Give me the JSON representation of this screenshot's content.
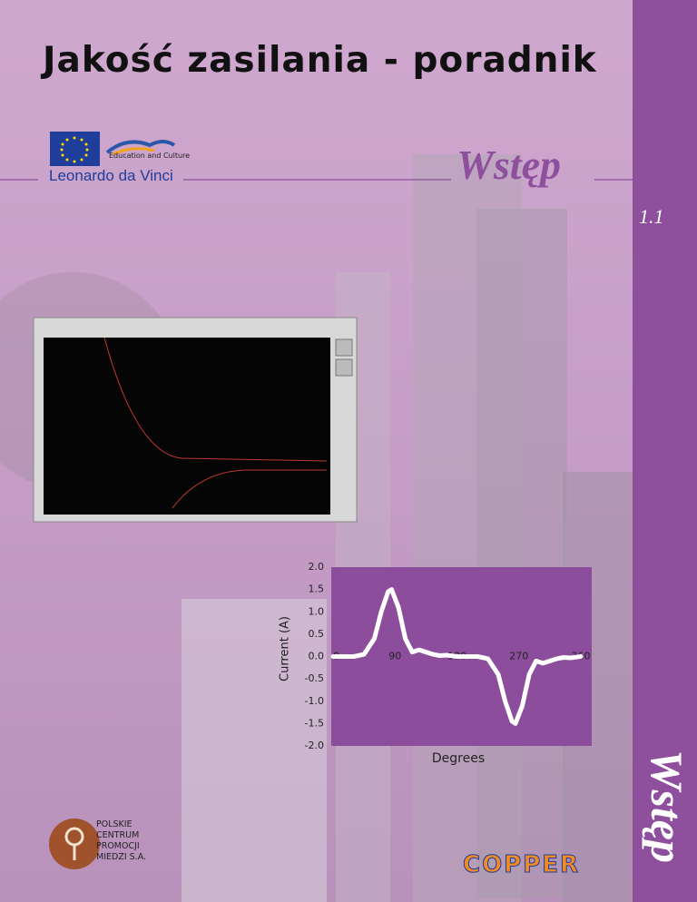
{
  "header": {
    "title": "Jakość zasilania - poradnik",
    "section": "Wstęp",
    "number": "1.1",
    "side_label": "Wstęp"
  },
  "logos": {
    "eu_caption": "Education and Culture",
    "program": "Leonardo da Vinci",
    "pcpm": [
      "POLSKIE",
      "CENTRUM",
      "PROMOCJI",
      "MIEDZI S.A."
    ],
    "copper": "COPPER"
  },
  "chart_data": {
    "type": "line",
    "y_label": "Current (A)",
    "x_label": "Degrees",
    "x": [
      0,
      30,
      45,
      60,
      70,
      80,
      85,
      95,
      105,
      115,
      125,
      135,
      145,
      155,
      165,
      180,
      210,
      225,
      240,
      250,
      260,
      265,
      275,
      285,
      295,
      305,
      315,
      325,
      335,
      345,
      360
    ],
    "values": [
      0,
      0,
      0.05,
      0.4,
      1.0,
      1.45,
      1.5,
      1.1,
      0.4,
      0.1,
      0.15,
      0.1,
      0.05,
      0.02,
      0.03,
      0,
      0,
      -0.05,
      -0.4,
      -1.0,
      -1.45,
      -1.5,
      -1.1,
      -0.4,
      -0.1,
      -0.15,
      -0.1,
      -0.05,
      -0.02,
      -0.03,
      0
    ],
    "color": "#ffffff",
    "background": "#8b4d9c",
    "xlim": [
      0,
      360
    ],
    "xticks": [
      0,
      90,
      180,
      270,
      360
    ],
    "ylim": [
      -2,
      2
    ],
    "yticks": [
      {
        "value": 2,
        "label": "2.0"
      },
      1.5,
      {
        "value": 1,
        "label": "1.0"
      },
      0.5,
      {
        "value": 0,
        "label": "0.0"
      },
      -0.5,
      {
        "value": -1,
        "label": "-1.0"
      },
      -1.5,
      {
        "value": -2,
        "label": "-2.0"
      }
    ]
  }
}
